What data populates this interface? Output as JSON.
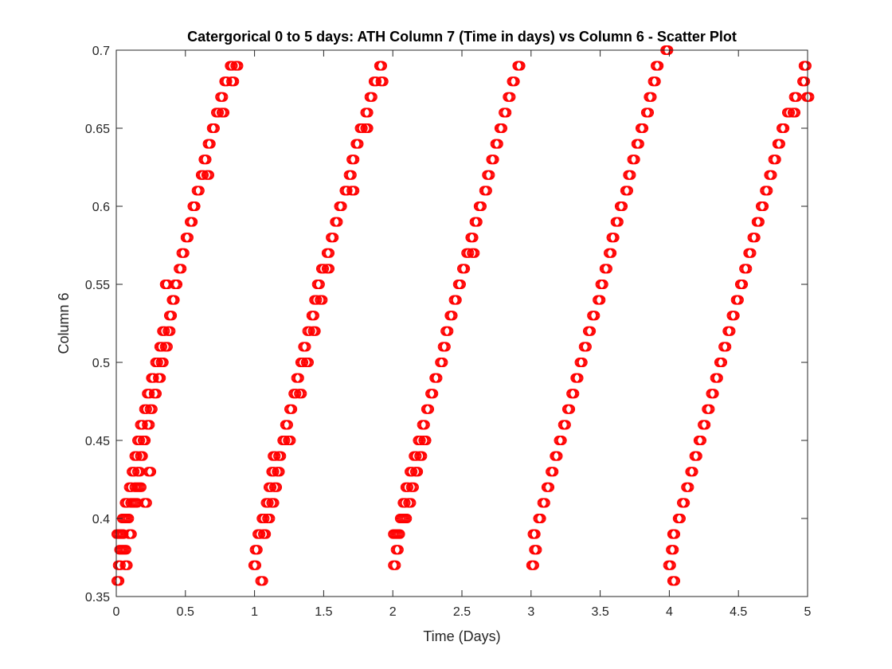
{
  "chart_data": {
    "type": "scatter",
    "title": "Catergorical 0 to 5 days: ATH Column 7 (Time in days) vs Column 6 - Scatter Plot",
    "xlabel": "Time (Days)",
    "ylabel": "Column 6",
    "xlim": [
      0,
      5
    ],
    "ylim": [
      0.35,
      0.7
    ],
    "xticks": [
      0,
      0.5,
      1,
      1.5,
      2,
      2.5,
      3,
      3.5,
      4,
      4.5,
      5
    ],
    "xtick_labels": [
      "0",
      "0.5",
      "1",
      "1.5",
      "2",
      "2.5",
      "3",
      "3.5",
      "4",
      "4.5",
      "5"
    ],
    "yticks": [
      0.35,
      0.4,
      0.45,
      0.5,
      0.55,
      0.6,
      0.65,
      0.7
    ],
    "ytick_labels": [
      "0.35",
      "0.4",
      "0.45",
      "0.5",
      "0.55",
      "0.6",
      "0.65",
      "0.7"
    ],
    "grid": false,
    "marker": "open-circle",
    "marker_color": "#ff0000",
    "series": [
      {
        "name": "",
        "points": [
          {
            "x": 0.0,
            "y": 0.36
          },
          {
            "x": 0.01,
            "y": 0.37
          },
          {
            "x": 0.02,
            "y": 0.38
          },
          {
            "x": 0.0,
            "y": 0.39
          },
          {
            "x": 0.03,
            "y": 0.39
          },
          {
            "x": 0.05,
            "y": 0.38
          },
          {
            "x": 0.06,
            "y": 0.37
          },
          {
            "x": 0.04,
            "y": 0.4
          },
          {
            "x": 0.07,
            "y": 0.4
          },
          {
            "x": 0.09,
            "y": 0.39
          },
          {
            "x": 0.06,
            "y": 0.41
          },
          {
            "x": 0.1,
            "y": 0.41
          },
          {
            "x": 0.13,
            "y": 0.41
          },
          {
            "x": 0.09,
            "y": 0.42
          },
          {
            "x": 0.13,
            "y": 0.42
          },
          {
            "x": 0.16,
            "y": 0.42
          },
          {
            "x": 0.2,
            "y": 0.41
          },
          {
            "x": 0.11,
            "y": 0.43
          },
          {
            "x": 0.15,
            "y": 0.43
          },
          {
            "x": 0.13,
            "y": 0.44
          },
          {
            "x": 0.17,
            "y": 0.44
          },
          {
            "x": 0.15,
            "y": 0.45
          },
          {
            "x": 0.19,
            "y": 0.45
          },
          {
            "x": 0.23,
            "y": 0.43
          },
          {
            "x": 0.17,
            "y": 0.46
          },
          {
            "x": 0.22,
            "y": 0.46
          },
          {
            "x": 0.2,
            "y": 0.47
          },
          {
            "x": 0.24,
            "y": 0.47
          },
          {
            "x": 0.22,
            "y": 0.48
          },
          {
            "x": 0.27,
            "y": 0.48
          },
          {
            "x": 0.25,
            "y": 0.49
          },
          {
            "x": 0.3,
            "y": 0.49
          },
          {
            "x": 0.28,
            "y": 0.5
          },
          {
            "x": 0.32,
            "y": 0.5
          },
          {
            "x": 0.31,
            "y": 0.51
          },
          {
            "x": 0.35,
            "y": 0.51
          },
          {
            "x": 0.33,
            "y": 0.52
          },
          {
            "x": 0.37,
            "y": 0.52
          },
          {
            "x": 0.38,
            "y": 0.53
          },
          {
            "x": 0.4,
            "y": 0.54
          },
          {
            "x": 0.35,
            "y": 0.55
          },
          {
            "x": 0.42,
            "y": 0.55
          },
          {
            "x": 0.45,
            "y": 0.56
          },
          {
            "x": 0.47,
            "y": 0.57
          },
          {
            "x": 0.5,
            "y": 0.58
          },
          {
            "x": 0.53,
            "y": 0.59
          },
          {
            "x": 0.55,
            "y": 0.6
          },
          {
            "x": 0.58,
            "y": 0.61
          },
          {
            "x": 0.61,
            "y": 0.62
          },
          {
            "x": 0.65,
            "y": 0.62
          },
          {
            "x": 0.63,
            "y": 0.63
          },
          {
            "x": 0.66,
            "y": 0.64
          },
          {
            "x": 0.69,
            "y": 0.65
          },
          {
            "x": 0.72,
            "y": 0.66
          },
          {
            "x": 0.76,
            "y": 0.66
          },
          {
            "x": 0.75,
            "y": 0.67
          },
          {
            "x": 0.78,
            "y": 0.68
          },
          {
            "x": 0.83,
            "y": 0.68
          },
          {
            "x": 0.82,
            "y": 0.69
          },
          {
            "x": 0.86,
            "y": 0.69
          },
          {
            "x": 0.99,
            "y": 0.37
          },
          {
            "x": 1.04,
            "y": 0.36
          },
          {
            "x": 1.0,
            "y": 0.38
          },
          {
            "x": 1.02,
            "y": 0.39
          },
          {
            "x": 1.06,
            "y": 0.39
          },
          {
            "x": 1.05,
            "y": 0.4
          },
          {
            "x": 1.09,
            "y": 0.4
          },
          {
            "x": 1.08,
            "y": 0.41
          },
          {
            "x": 1.12,
            "y": 0.41
          },
          {
            "x": 1.1,
            "y": 0.42
          },
          {
            "x": 1.14,
            "y": 0.42
          },
          {
            "x": 1.12,
            "y": 0.43
          },
          {
            "x": 1.16,
            "y": 0.43
          },
          {
            "x": 1.13,
            "y": 0.44
          },
          {
            "x": 1.17,
            "y": 0.44
          },
          {
            "x": 1.2,
            "y": 0.45
          },
          {
            "x": 1.24,
            "y": 0.45
          },
          {
            "x": 1.22,
            "y": 0.46
          },
          {
            "x": 1.25,
            "y": 0.47
          },
          {
            "x": 1.28,
            "y": 0.48
          },
          {
            "x": 1.32,
            "y": 0.48
          },
          {
            "x": 1.3,
            "y": 0.49
          },
          {
            "x": 1.33,
            "y": 0.5
          },
          {
            "x": 1.37,
            "y": 0.5
          },
          {
            "x": 1.35,
            "y": 0.51
          },
          {
            "x": 1.38,
            "y": 0.52
          },
          {
            "x": 1.42,
            "y": 0.52
          },
          {
            "x": 1.41,
            "y": 0.53
          },
          {
            "x": 1.43,
            "y": 0.54
          },
          {
            "x": 1.47,
            "y": 0.54
          },
          {
            "x": 1.45,
            "y": 0.55
          },
          {
            "x": 1.48,
            "y": 0.56
          },
          {
            "x": 1.52,
            "y": 0.56
          },
          {
            "x": 1.52,
            "y": 0.57
          },
          {
            "x": 1.55,
            "y": 0.58
          },
          {
            "x": 1.58,
            "y": 0.59
          },
          {
            "x": 1.61,
            "y": 0.6
          },
          {
            "x": 1.65,
            "y": 0.61
          },
          {
            "x": 1.7,
            "y": 0.61
          },
          {
            "x": 1.68,
            "y": 0.62
          },
          {
            "x": 1.7,
            "y": 0.63
          },
          {
            "x": 1.73,
            "y": 0.64
          },
          {
            "x": 1.76,
            "y": 0.65
          },
          {
            "x": 1.8,
            "y": 0.65
          },
          {
            "x": 1.8,
            "y": 0.66
          },
          {
            "x": 1.83,
            "y": 0.67
          },
          {
            "x": 1.86,
            "y": 0.68
          },
          {
            "x": 1.91,
            "y": 0.68
          },
          {
            "x": 1.9,
            "y": 0.69
          },
          {
            "x": 2.0,
            "y": 0.37
          },
          {
            "x": 2.02,
            "y": 0.38
          },
          {
            "x": 2.0,
            "y": 0.39
          },
          {
            "x": 2.03,
            "y": 0.39
          },
          {
            "x": 2.05,
            "y": 0.4
          },
          {
            "x": 2.08,
            "y": 0.4
          },
          {
            "x": 2.07,
            "y": 0.41
          },
          {
            "x": 2.11,
            "y": 0.41
          },
          {
            "x": 2.09,
            "y": 0.42
          },
          {
            "x": 2.13,
            "y": 0.42
          },
          {
            "x": 2.12,
            "y": 0.43
          },
          {
            "x": 2.16,
            "y": 0.43
          },
          {
            "x": 2.15,
            "y": 0.44
          },
          {
            "x": 2.19,
            "y": 0.44
          },
          {
            "x": 2.18,
            "y": 0.45
          },
          {
            "x": 2.22,
            "y": 0.45
          },
          {
            "x": 2.21,
            "y": 0.46
          },
          {
            "x": 2.24,
            "y": 0.47
          },
          {
            "x": 2.27,
            "y": 0.48
          },
          {
            "x": 2.3,
            "y": 0.49
          },
          {
            "x": 2.34,
            "y": 0.5
          },
          {
            "x": 2.36,
            "y": 0.51
          },
          {
            "x": 2.38,
            "y": 0.52
          },
          {
            "x": 2.41,
            "y": 0.53
          },
          {
            "x": 2.44,
            "y": 0.54
          },
          {
            "x": 2.47,
            "y": 0.55
          },
          {
            "x": 2.5,
            "y": 0.56
          },
          {
            "x": 2.53,
            "y": 0.57
          },
          {
            "x": 2.57,
            "y": 0.57
          },
          {
            "x": 2.56,
            "y": 0.58
          },
          {
            "x": 2.59,
            "y": 0.59
          },
          {
            "x": 2.62,
            "y": 0.6
          },
          {
            "x": 2.66,
            "y": 0.61
          },
          {
            "x": 2.68,
            "y": 0.62
          },
          {
            "x": 2.71,
            "y": 0.63
          },
          {
            "x": 2.74,
            "y": 0.64
          },
          {
            "x": 2.77,
            "y": 0.65
          },
          {
            "x": 2.8,
            "y": 0.66
          },
          {
            "x": 2.83,
            "y": 0.67
          },
          {
            "x": 2.86,
            "y": 0.68
          },
          {
            "x": 2.9,
            "y": 0.69
          },
          {
            "x": 3.0,
            "y": 0.37
          },
          {
            "x": 3.02,
            "y": 0.38
          },
          {
            "x": 3.01,
            "y": 0.39
          },
          {
            "x": 3.05,
            "y": 0.4
          },
          {
            "x": 3.08,
            "y": 0.41
          },
          {
            "x": 3.11,
            "y": 0.42
          },
          {
            "x": 3.14,
            "y": 0.43
          },
          {
            "x": 3.17,
            "y": 0.44
          },
          {
            "x": 3.2,
            "y": 0.45
          },
          {
            "x": 3.23,
            "y": 0.46
          },
          {
            "x": 3.26,
            "y": 0.47
          },
          {
            "x": 3.29,
            "y": 0.48
          },
          {
            "x": 3.32,
            "y": 0.49
          },
          {
            "x": 3.35,
            "y": 0.5
          },
          {
            "x": 3.38,
            "y": 0.51
          },
          {
            "x": 3.41,
            "y": 0.52
          },
          {
            "x": 3.44,
            "y": 0.53
          },
          {
            "x": 3.48,
            "y": 0.54
          },
          {
            "x": 3.5,
            "y": 0.55
          },
          {
            "x": 3.53,
            "y": 0.56
          },
          {
            "x": 3.56,
            "y": 0.57
          },
          {
            "x": 3.58,
            "y": 0.58
          },
          {
            "x": 3.61,
            "y": 0.59
          },
          {
            "x": 3.64,
            "y": 0.6
          },
          {
            "x": 3.68,
            "y": 0.61
          },
          {
            "x": 3.7,
            "y": 0.62
          },
          {
            "x": 3.73,
            "y": 0.63
          },
          {
            "x": 3.76,
            "y": 0.64
          },
          {
            "x": 3.79,
            "y": 0.65
          },
          {
            "x": 3.83,
            "y": 0.66
          },
          {
            "x": 3.85,
            "y": 0.67
          },
          {
            "x": 3.88,
            "y": 0.68
          },
          {
            "x": 3.9,
            "y": 0.69
          },
          {
            "x": 3.97,
            "y": 0.7
          },
          {
            "x": 3.99,
            "y": 0.37
          },
          {
            "x": 4.02,
            "y": 0.36
          },
          {
            "x": 4.01,
            "y": 0.38
          },
          {
            "x": 4.02,
            "y": 0.39
          },
          {
            "x": 4.06,
            "y": 0.4
          },
          {
            "x": 4.09,
            "y": 0.41
          },
          {
            "x": 4.12,
            "y": 0.42
          },
          {
            "x": 4.15,
            "y": 0.43
          },
          {
            "x": 4.18,
            "y": 0.44
          },
          {
            "x": 4.21,
            "y": 0.45
          },
          {
            "x": 4.24,
            "y": 0.46
          },
          {
            "x": 4.27,
            "y": 0.47
          },
          {
            "x": 4.3,
            "y": 0.48
          },
          {
            "x": 4.33,
            "y": 0.49
          },
          {
            "x": 4.36,
            "y": 0.5
          },
          {
            "x": 4.39,
            "y": 0.51
          },
          {
            "x": 4.42,
            "y": 0.52
          },
          {
            "x": 4.45,
            "y": 0.53
          },
          {
            "x": 4.48,
            "y": 0.54
          },
          {
            "x": 4.51,
            "y": 0.55
          },
          {
            "x": 4.54,
            "y": 0.56
          },
          {
            "x": 4.57,
            "y": 0.57
          },
          {
            "x": 4.6,
            "y": 0.58
          },
          {
            "x": 4.63,
            "y": 0.59
          },
          {
            "x": 4.66,
            "y": 0.6
          },
          {
            "x": 4.69,
            "y": 0.61
          },
          {
            "x": 4.72,
            "y": 0.62
          },
          {
            "x": 4.75,
            "y": 0.63
          },
          {
            "x": 4.78,
            "y": 0.64
          },
          {
            "x": 4.81,
            "y": 0.65
          },
          {
            "x": 4.85,
            "y": 0.66
          },
          {
            "x": 4.89,
            "y": 0.66
          },
          {
            "x": 4.9,
            "y": 0.67
          },
          {
            "x": 4.99,
            "y": 0.67
          },
          {
            "x": 4.96,
            "y": 0.68
          },
          {
            "x": 4.97,
            "y": 0.69
          }
        ]
      }
    ]
  }
}
